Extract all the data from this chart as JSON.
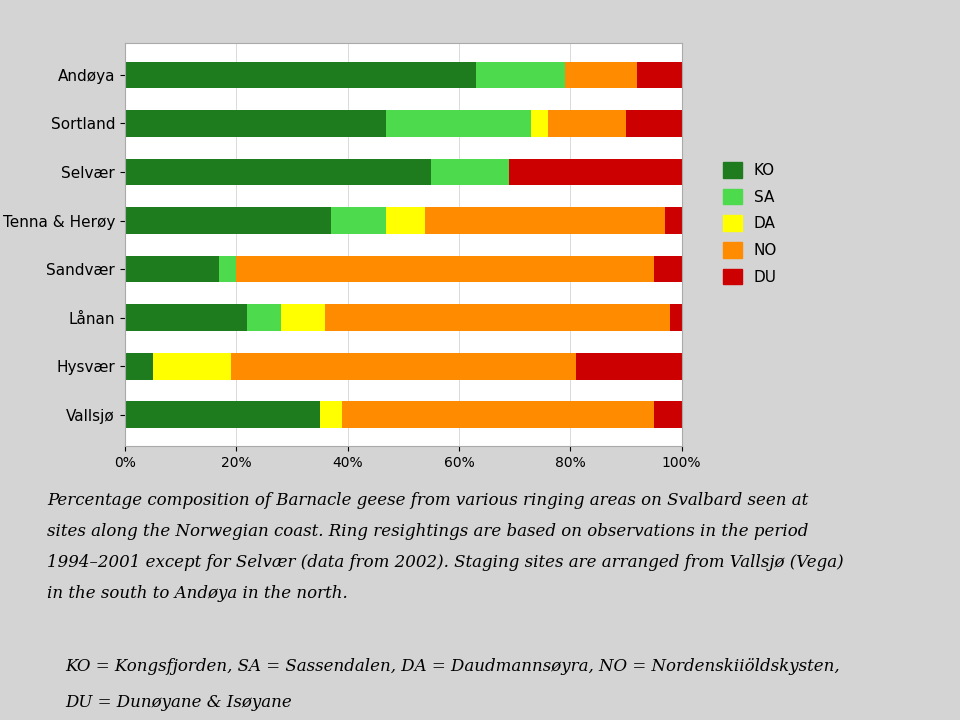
{
  "categories": [
    "Andøya",
    "Sortland",
    "Selvær",
    "Tenna & Herøy",
    "Sandvær",
    "Lånan",
    "Hysvær",
    "Vallsjø"
  ],
  "series": {
    "KO": [
      63,
      47,
      55,
      37,
      17,
      22,
      5,
      35
    ],
    "SA": [
      16,
      26,
      14,
      10,
      3,
      6,
      0,
      0
    ],
    "DA": [
      0,
      3,
      0,
      7,
      0,
      8,
      14,
      4
    ],
    "NO": [
      13,
      14,
      0,
      43,
      75,
      62,
      62,
      56
    ],
    "DU": [
      8,
      10,
      31,
      3,
      5,
      2,
      19,
      5
    ]
  },
  "colors": {
    "KO": "#1e7b1e",
    "SA": "#4ddb4d",
    "DA": "#ffff00",
    "NO": "#ff8c00",
    "DU": "#cc0000"
  },
  "legend_labels": [
    "KO",
    "SA",
    "DA",
    "NO",
    "DU"
  ],
  "background_color": "#d4d4d4",
  "plot_background": "#ffffff",
  "chart_box_color": "#cccccc",
  "figsize": [
    9.6,
    7.2
  ],
  "dpi": 100,
  "caption_line1": "Percentage composition of Barnacle geese from various ringing areas on Svalbard seen at",
  "caption_line2": "sites along the Norwegian coast. Ring resightings are based on observations in the period",
  "caption_line3": "1994–2001 except for Selvær (data from 2002). Staging sites are arranged from Vallsjø (Vega)",
  "caption_line4": "in the south to Andøya in the north.",
  "caption_line5": "",
  "caption_line6": "KO = Kongsfjorden, SA = Sassendalen, DA = Daudmannsøyra, NO = Nordenskiiöldskysten,",
  "caption_line7": "DU = Dunøyane & Isøyane"
}
